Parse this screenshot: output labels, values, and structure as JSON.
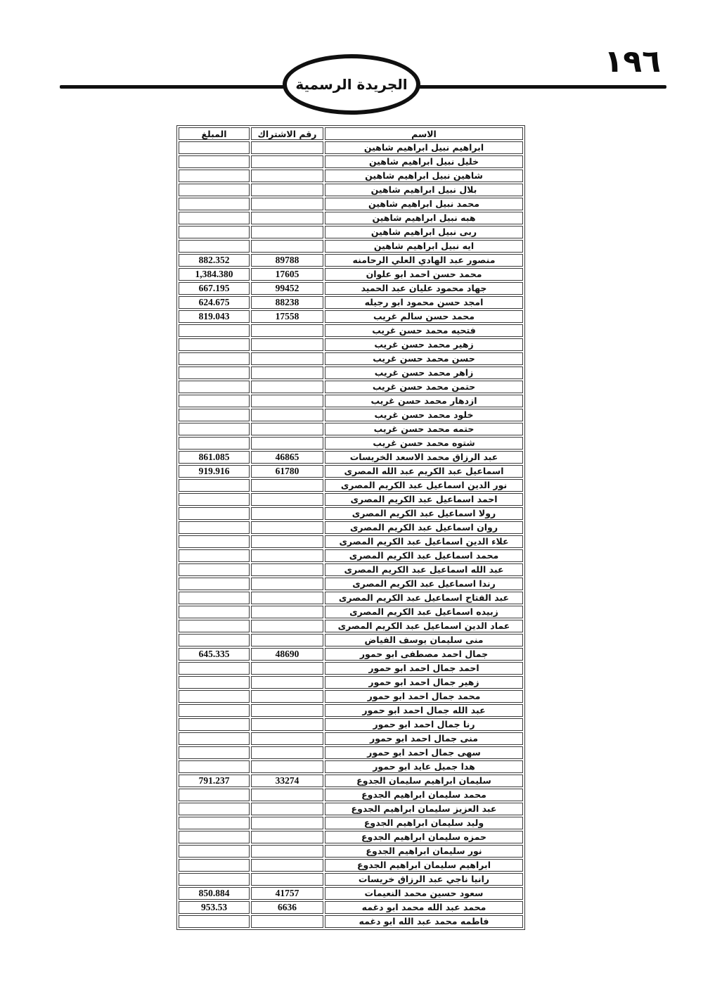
{
  "page": {
    "number": "١٩٦",
    "banner_title": "الجريدة الرسمية"
  },
  "table": {
    "headers": {
      "name": "الاسم",
      "subscription": "رقم الاشتراك",
      "amount": "المبلغ"
    },
    "rows": [
      {
        "name": "ابراهيم نبيل ابراهيم شاهين",
        "sub": "",
        "amt": ""
      },
      {
        "name": "خليل نبيل ابراهيم شاهين",
        "sub": "",
        "amt": ""
      },
      {
        "name": "شاهين نبيل ابراهيم شاهين",
        "sub": "",
        "amt": ""
      },
      {
        "name": "بلال نبيل ابراهيم شاهين",
        "sub": "",
        "amt": ""
      },
      {
        "name": "محمد نبيل ابراهيم شاهين",
        "sub": "",
        "amt": ""
      },
      {
        "name": "هبه نبيل ابراهيم شاهين",
        "sub": "",
        "amt": ""
      },
      {
        "name": "ربى نبيل ابراهيم شاهين",
        "sub": "",
        "amt": ""
      },
      {
        "name": "ايه نبيل ابراهيم شاهين",
        "sub": "",
        "amt": ""
      },
      {
        "name": "منصور عبد الهادي العلي الرحامنه",
        "sub": "89788",
        "amt": "882.352"
      },
      {
        "name": "محمد حسن احمد ابو علوان",
        "sub": "17605",
        "amt": "1,384.380"
      },
      {
        "name": "جهاد محمود عليان عبد الحميد",
        "sub": "99452",
        "amt": "667.195"
      },
      {
        "name": "امجد حسن محمود ابو رجيله",
        "sub": "88238",
        "amt": "624.675"
      },
      {
        "name": "محمد حسن سالم غريب",
        "sub": "17558",
        "amt": "819.043"
      },
      {
        "name": "فتحيه محمد حسن غريب",
        "sub": "",
        "amt": ""
      },
      {
        "name": "زهير محمد حسن غريب",
        "sub": "",
        "amt": ""
      },
      {
        "name": "حسن محمد حسن غريب",
        "sub": "",
        "amt": ""
      },
      {
        "name": "زاهر محمد حسن غريب",
        "sub": "",
        "amt": ""
      },
      {
        "name": "حتمن محمد حسن غريب",
        "sub": "",
        "amt": ""
      },
      {
        "name": "ازدهار محمد حسن غريب",
        "sub": "",
        "amt": ""
      },
      {
        "name": "خلود محمد حسن غريب",
        "sub": "",
        "amt": ""
      },
      {
        "name": "حتمه محمد حسن غريب",
        "sub": "",
        "amt": ""
      },
      {
        "name": "شتوه محمد حسن غريب",
        "sub": "",
        "amt": ""
      },
      {
        "name": "عبد الرزاق محمد الاسعد الخريسات",
        "sub": "46865",
        "amt": "861.085"
      },
      {
        "name": "اسماعيل عبد الكريم عبد الله المصرى",
        "sub": "61780",
        "amt": "919.916"
      },
      {
        "name": "نور الدين اسماعيل عبد الكريم المصرى",
        "sub": "",
        "amt": ""
      },
      {
        "name": "احمد اسماعيل عبد الكريم المصرى",
        "sub": "",
        "amt": ""
      },
      {
        "name": "رولا اسماعيل عبد الكريم المصرى",
        "sub": "",
        "amt": ""
      },
      {
        "name": "روان اسماعيل عبد الكريم المصرى",
        "sub": "",
        "amt": ""
      },
      {
        "name": "علاء الدين اسماعيل عبد الكريم المصرى",
        "sub": "",
        "amt": ""
      },
      {
        "name": "محمد اسماعيل عبد الكريم المصرى",
        "sub": "",
        "amt": ""
      },
      {
        "name": "عبد الله اسماعيل عبد الكريم المصرى",
        "sub": "",
        "amt": ""
      },
      {
        "name": "رندا اسماعيل عبد الكريم المصرى",
        "sub": "",
        "amt": ""
      },
      {
        "name": "عبد الفتاح اسماعيل عبد الكريم المصرى",
        "sub": "",
        "amt": ""
      },
      {
        "name": "زبيده اسماعيل عبد الكريم المصرى",
        "sub": "",
        "amt": ""
      },
      {
        "name": "عماد الدين اسماعيل عبد الكريم المصرى",
        "sub": "",
        "amt": ""
      },
      {
        "name": "منى سليمان يوسف الفياض",
        "sub": "",
        "amt": ""
      },
      {
        "name": "جمال احمد مصطفى ابو حمور",
        "sub": "48690",
        "amt": "645.335"
      },
      {
        "name": "احمد جمال احمد ابو حمور",
        "sub": "",
        "amt": ""
      },
      {
        "name": "زهير جمال احمد ابو حمور",
        "sub": "",
        "amt": ""
      },
      {
        "name": "محمد جمال احمد ابو حمور",
        "sub": "",
        "amt": ""
      },
      {
        "name": "عبد الله جمال احمد ابو حمور",
        "sub": "",
        "amt": ""
      },
      {
        "name": "رنا جمال احمد ابو حمور",
        "sub": "",
        "amt": ""
      },
      {
        "name": "منى جمال احمد ابو حمور",
        "sub": "",
        "amt": ""
      },
      {
        "name": "سهى جمال احمد ابو حمور",
        "sub": "",
        "amt": ""
      },
      {
        "name": "هدا جميل عايد ابو حمور",
        "sub": "",
        "amt": ""
      },
      {
        "name": "سليمان ابراهيم سليمان الجدوع",
        "sub": "33274",
        "amt": "791.237"
      },
      {
        "name": "محمد سليمان ابراهيم الجدوع",
        "sub": "",
        "amt": ""
      },
      {
        "name": "عبد العزيز سليمان ابراهيم الجدوع",
        "sub": "",
        "amt": ""
      },
      {
        "name": "وليد سليمان ابراهيم الجدوع",
        "sub": "",
        "amt": ""
      },
      {
        "name": "حمزه سليمان ابراهيم الجدوع",
        "sub": "",
        "amt": ""
      },
      {
        "name": "نور سليمان ابراهيم الجدوع",
        "sub": "",
        "amt": ""
      },
      {
        "name": "ابراهيم سليمان ابراهيم الجدوع",
        "sub": "",
        "amt": ""
      },
      {
        "name": "رانيا ناجي عبد الرزاق خريسات",
        "sub": "",
        "amt": ""
      },
      {
        "name": "سعود حسين محمد النعيمات",
        "sub": "41757",
        "amt": "850.884"
      },
      {
        "name": "محمد عبد الله محمد ابو دغمه",
        "sub": "6636",
        "amt": "953.53"
      },
      {
        "name": "فاطمه محمد عبد الله ابو دغمه",
        "sub": "",
        "amt": ""
      }
    ]
  }
}
